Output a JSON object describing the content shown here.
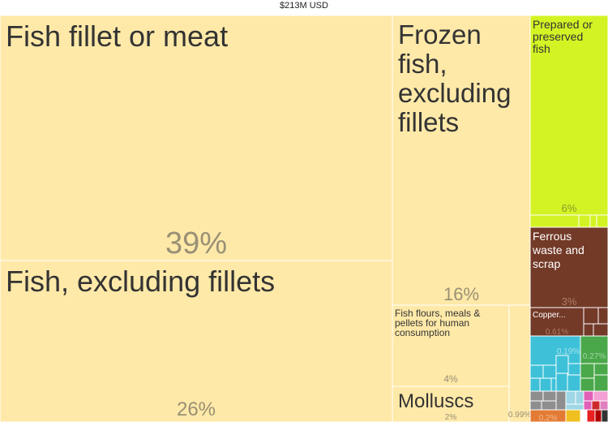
{
  "total_label": "$213M USD",
  "chart_data": {
    "type": "treemap",
    "total": "$213M USD",
    "tiles": [
      {
        "label": "Fish fillet or meat",
        "value": 39,
        "pct_label": "39%",
        "color": "#ffe9a8"
      },
      {
        "label": "Fish, excluding fillets",
        "value": 26,
        "pct_label": "26%",
        "color": "#ffe9a8"
      },
      {
        "label": "Frozen fish, excluding fillets",
        "value": 16,
        "pct_label": "16%",
        "color": "#ffe9a8"
      },
      {
        "label": "Fish flours, meals & pellets for human consumption",
        "value": 4,
        "pct_label": "4%",
        "color": "#ffe9a8"
      },
      {
        "label": "Molluscs",
        "value": 2,
        "pct_label": "2%",
        "color": "#ffe9a8"
      },
      {
        "label": "",
        "value": 0.99,
        "pct_label": "0.99%",
        "color": "#ffe9a8"
      },
      {
        "label": "Prepared or preserved fish",
        "value": 6,
        "pct_label": "6%",
        "color": "#d4f324"
      },
      {
        "label": "Ferrous waste and scrap",
        "value": 3,
        "pct_label": "3%",
        "color": "#733a28"
      },
      {
        "label": "Copper...",
        "value": 0.61,
        "pct_label": "0.61%",
        "color": "#733a28"
      },
      {
        "label": "",
        "value": 0.19,
        "pct_label": "0.19%",
        "color": "#3ec1d8"
      },
      {
        "label": "",
        "value": 0.27,
        "pct_label": "0.27%",
        "color": "#4aa84a"
      },
      {
        "label": "",
        "value": 0.2,
        "pct_label": "0.2%",
        "color": "#e37b34"
      }
    ]
  }
}
